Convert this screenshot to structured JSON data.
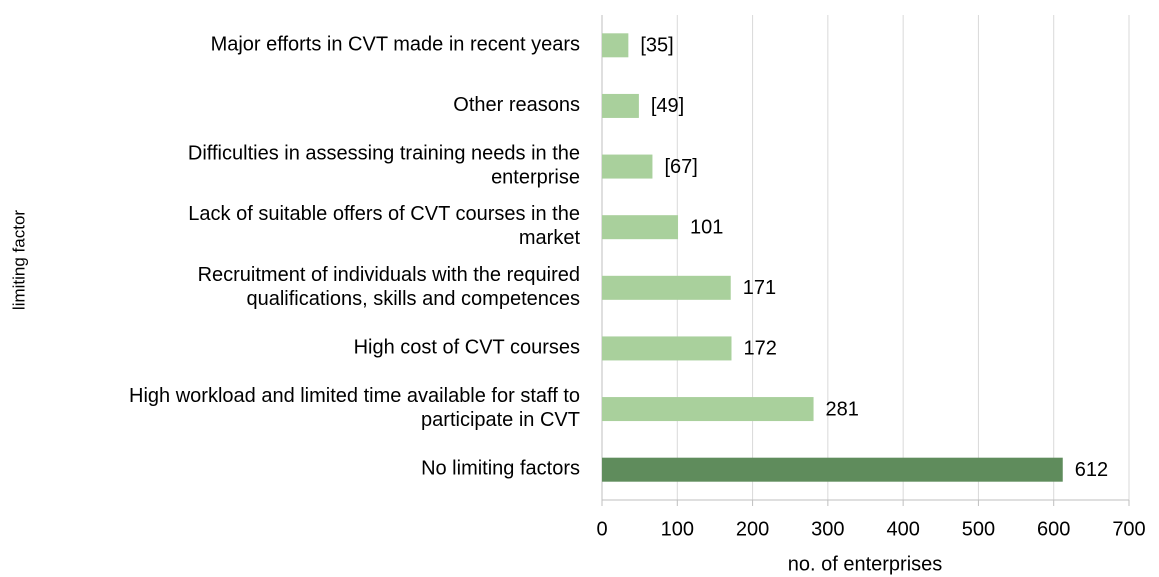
{
  "chart_data": {
    "type": "bar",
    "orientation": "horizontal",
    "categories": [
      "Major efforts in CVT made in recent years",
      "Other reasons",
      "Difficulties in assessing training needs in the\nenterprise",
      "Lack of suitable offers of CVT courses in the\nmarket",
      "Recruitment of individuals with the required\nqualifications, skills and competences",
      "High cost of CVT courses",
      "High workload and limited time available for staff to\nparticipate in CVT",
      "No limiting factors"
    ],
    "values": [
      35,
      49,
      67,
      101,
      171,
      172,
      281,
      612
    ],
    "value_labels": [
      "[35]",
      "[49]",
      "[67]",
      "101",
      "171",
      "172",
      "281",
      "612"
    ],
    "colors": [
      "#a9d09c",
      "#a9d09c",
      "#a9d09c",
      "#a9d09c",
      "#a9d09c",
      "#a9d09c",
      "#a9d09c",
      "#5f8c5c"
    ],
    "xlabel": "no. of enterprises",
    "ylabel": "limiting factor",
    "xlim": [
      0,
      700
    ],
    "xticks": [
      0,
      100,
      200,
      300,
      400,
      500,
      600,
      700
    ],
    "grid": true
  }
}
